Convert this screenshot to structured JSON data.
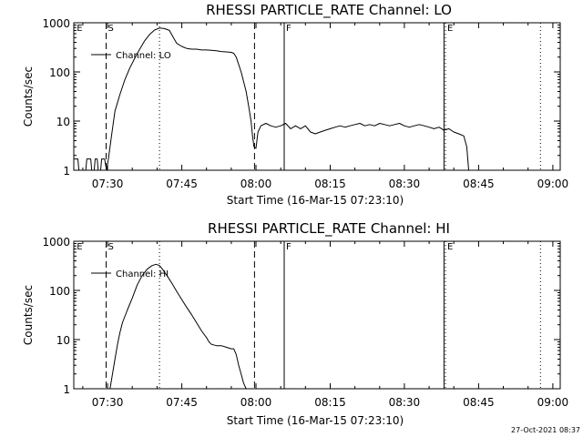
{
  "colors": {
    "background": "#ffffff",
    "foreground": "#000000"
  },
  "footer": {
    "timestamp": "27-Oct-2021 08:37"
  },
  "chart_data": [
    {
      "type": "line",
      "title": "RHESSI PARTICLE_RATE Channel: LO",
      "xlabel": "Start Time (16-Mar-15 07:23:10)",
      "ylabel": "Counts/sec",
      "yscale": "log",
      "ylim": [
        1,
        1000
      ],
      "xlim": [
        443.17,
        541.5
      ],
      "x_units": "minutes after 00:00 UT",
      "xticks": [
        {
          "value": 450,
          "label": "07:30"
        },
        {
          "value": 465,
          "label": "07:45"
        },
        {
          "value": 480,
          "label": "08:00"
        },
        {
          "value": 495,
          "label": "08:15"
        },
        {
          "value": 510,
          "label": "08:30"
        },
        {
          "value": 525,
          "label": "08:45"
        },
        {
          "value": 540,
          "label": "09:00"
        }
      ],
      "yticks": [
        {
          "value": 1,
          "label": "1"
        },
        {
          "value": 10,
          "label": "10"
        },
        {
          "value": 100,
          "label": "100"
        },
        {
          "value": 1000,
          "label": "1000"
        }
      ],
      "legend": {
        "label": "Channel: LO",
        "position": "top-left"
      },
      "markers": [
        {
          "label": "E",
          "x": 443.4,
          "style": "none"
        },
        {
          "label": "S",
          "x": 449.7,
          "style": "dashed"
        },
        {
          "label": "",
          "x": 460.5,
          "style": "dotted"
        },
        {
          "label": "",
          "x": 479.7,
          "style": "dashed"
        },
        {
          "label": "F",
          "x": 485.7,
          "style": "solid"
        },
        {
          "label": "",
          "x": 518.0,
          "style": "solid"
        },
        {
          "label": "E",
          "x": 518.3,
          "style": "dotted"
        },
        {
          "label": "",
          "x": 537.5,
          "style": "dotted"
        }
      ],
      "series": [
        {
          "name": "Channel: LO",
          "x": [
            443.2,
            444.0,
            444.2,
            445.6,
            445.8,
            446.6,
            446.8,
            447.3,
            447.5,
            447.9,
            448.1,
            448.6,
            448.8,
            449.4,
            449.8,
            450.2,
            450.8,
            451.5,
            452.5,
            453.5,
            454.5,
            455.5,
            456.5,
            457.5,
            458.5,
            459.5,
            460.5,
            461.5,
            462.5,
            463.3,
            464.0,
            465.0,
            466.0,
            467.0,
            468.0,
            469.0,
            470.0,
            471.0,
            472.0,
            473.0,
            474.0,
            475.0,
            475.5,
            476.0,
            477.0,
            478.0,
            478.6,
            479.0,
            479.3,
            479.6,
            480.0,
            480.4,
            481.0,
            482.0,
            483.0,
            484.0,
            485.0,
            486.0,
            487.0,
            488.0,
            489.0,
            490.0,
            491.0,
            492.0,
            493.0,
            494.0,
            495.0,
            496.0,
            497.0,
            498.0,
            499.0,
            500.0,
            501.0,
            502.0,
            503.0,
            504.0,
            505.0,
            506.0,
            507.0,
            508.0,
            509.0,
            510.0,
            511.0,
            512.0,
            513.0,
            514.0,
            515.0,
            516.0,
            517.0,
            518.0,
            519.0,
            520.0,
            521.0,
            522.0,
            522.6,
            523.0,
            524.0,
            525.0,
            526.0,
            527.0,
            528.0,
            529.0,
            530.0,
            531.0,
            532.0,
            533.0,
            534.0,
            535.0,
            536.0,
            537.0
          ],
          "y": [
            1.7,
            1.7,
            1,
            1,
            1.7,
            1.7,
            1,
            1,
            1.7,
            1.7,
            1,
            1,
            1.7,
            1.7,
            1,
            1.8,
            5,
            16,
            35,
            70,
            120,
            190,
            290,
            430,
            580,
            710,
            780,
            760,
            700,
            500,
            380,
            330,
            300,
            290,
            290,
            280,
            280,
            275,
            270,
            260,
            255,
            250,
            240,
            200,
            100,
            40,
            18,
            10,
            5,
            3,
            2.8,
            6,
            8,
            9,
            8,
            7.5,
            8,
            9,
            7,
            8,
            7,
            8,
            6,
            5.5,
            6,
            6.5,
            7,
            7.5,
            8,
            7.5,
            8,
            8.5,
            9,
            8,
            8.5,
            8,
            9,
            8.5,
            8,
            8.5,
            9,
            8,
            7.5,
            8,
            8.5,
            8,
            7.5,
            7,
            7.5,
            6.5,
            7,
            6,
            5.5,
            5,
            3,
            1,
            1,
            1,
            1,
            1,
            1,
            1,
            1,
            1,
            1,
            1,
            1,
            1,
            1,
            1
          ]
        }
      ]
    },
    {
      "type": "line",
      "title": "RHESSI PARTICLE_RATE Channel: HI",
      "xlabel": "Start Time (16-Mar-15 07:23:10)",
      "ylabel": "Counts/sec",
      "yscale": "log",
      "ylim": [
        1,
        1000
      ],
      "xlim": [
        443.17,
        541.5
      ],
      "x_units": "minutes after 00:00 UT",
      "xticks": [
        {
          "value": 450,
          "label": "07:30"
        },
        {
          "value": 465,
          "label": "07:45"
        },
        {
          "value": 480,
          "label": "08:00"
        },
        {
          "value": 495,
          "label": "08:15"
        },
        {
          "value": 510,
          "label": "08:30"
        },
        {
          "value": 525,
          "label": "08:45"
        },
        {
          "value": 540,
          "label": "09:00"
        }
      ],
      "yticks": [
        {
          "value": 1,
          "label": "1"
        },
        {
          "value": 10,
          "label": "10"
        },
        {
          "value": 100,
          "label": "100"
        },
        {
          "value": 1000,
          "label": "1000"
        }
      ],
      "legend": {
        "label": "Channel: HI",
        "position": "top-left"
      },
      "markers": [
        {
          "label": "E",
          "x": 443.4,
          "style": "none"
        },
        {
          "label": "S",
          "x": 449.7,
          "style": "dashed"
        },
        {
          "label": "",
          "x": 460.5,
          "style": "dotted"
        },
        {
          "label": "",
          "x": 479.7,
          "style": "dashed"
        },
        {
          "label": "F",
          "x": 485.7,
          "style": "solid"
        },
        {
          "label": "",
          "x": 518.0,
          "style": "solid"
        },
        {
          "label": "E",
          "x": 518.3,
          "style": "dotted"
        },
        {
          "label": "",
          "x": 537.5,
          "style": "dotted"
        }
      ],
      "series": [
        {
          "name": "Channel: HI",
          "x": [
            450.5,
            451.0,
            451.5,
            452.0,
            452.5,
            453.0,
            454.0,
            455.0,
            456.0,
            457.0,
            458.0,
            459.0,
            459.8,
            460.5,
            461.0,
            462.0,
            463.0,
            464.0,
            465.0,
            466.0,
            467.0,
            468.0,
            469.0,
            470.0,
            470.5,
            471.0,
            472.0,
            473.0,
            474.0,
            475.0,
            475.5,
            476.0,
            476.5,
            477.0,
            477.5,
            478.0
          ],
          "y": [
            1,
            2,
            4,
            8,
            14,
            22,
            40,
            70,
            130,
            200,
            270,
            320,
            340,
            320,
            280,
            200,
            140,
            95,
            65,
            45,
            32,
            22,
            15,
            11,
            9,
            8,
            7.5,
            7.5,
            7,
            6.5,
            6.5,
            5,
            3,
            2,
            1.3,
            1
          ]
        }
      ]
    }
  ]
}
